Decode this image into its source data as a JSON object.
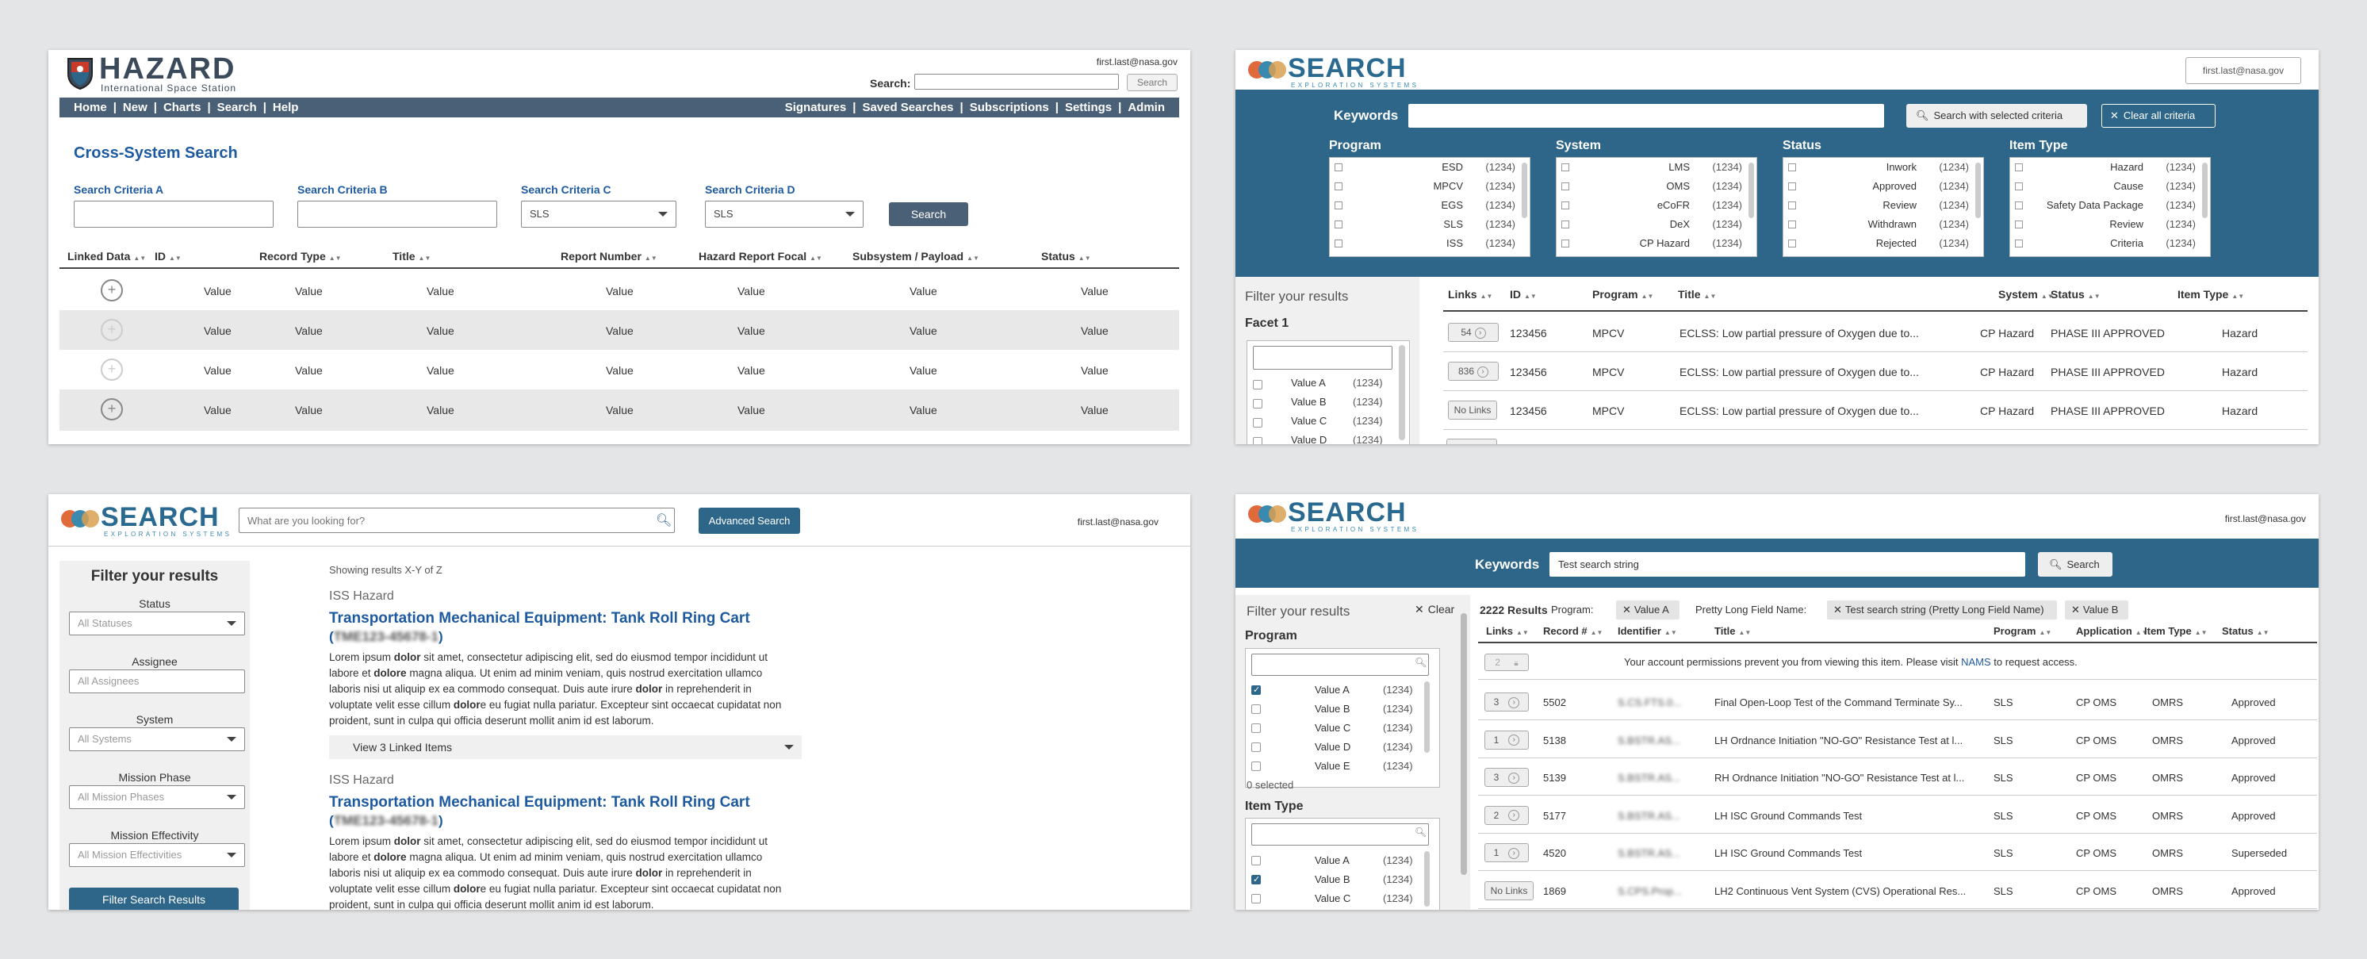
{
  "p1": {
    "logo_main": "HAZARD",
    "logo_sub": "International Space Station",
    "user": "first.last@nasa.gov",
    "search_label": "Search:",
    "search_button": "Search",
    "nav_left": [
      "Home",
      "New",
      "Charts",
      "Search",
      "Help"
    ],
    "nav_right": [
      "Signatures",
      "Saved Searches",
      "Subscriptions",
      "Settings",
      "Admin"
    ],
    "page_title": "Cross-System Search",
    "criteria": [
      {
        "label": "Search Criteria A",
        "value": ""
      },
      {
        "label": "Search Criteria B",
        "value": ""
      },
      {
        "label": "Search Criteria C",
        "value": "SLS"
      },
      {
        "label": "Search Criteria D",
        "value": "SLS"
      }
    ],
    "search_button2": "Search",
    "columns": [
      "Linked Data",
      "ID",
      "Record Type",
      "Title",
      "Report Number",
      "Hazard Report Focal",
      "Subsystem / Payload",
      "Status"
    ],
    "rows": [
      [
        "Value",
        "Value",
        "Value",
        "Value",
        "Value",
        "Value",
        "Value"
      ],
      [
        "Value",
        "Value",
        "Value",
        "Value",
        "Value",
        "Value",
        "Value"
      ],
      [
        "Value",
        "Value",
        "Value",
        "Value",
        "Value",
        "Value",
        "Value"
      ],
      [
        "Value",
        "Value",
        "Value",
        "Value",
        "Value",
        "Value",
        "Value"
      ]
    ]
  },
  "logo": {
    "word": "SEARCH",
    "sub": "EXPLORATION SYSTEMS",
    "colors": [
      "#e06a3a",
      "#3a8ab0",
      "#d8a050"
    ]
  },
  "p2": {
    "user": "first.last@nasa.gov",
    "keywords_label": "Keywords",
    "search_btn": "Search with selected criteria",
    "clear_btn": "Clear all criteria",
    "groups": [
      {
        "title": "Program",
        "items": [
          [
            "ESD",
            "(1234)"
          ],
          [
            "MPCV",
            "(1234)"
          ],
          [
            "EGS",
            "(1234)"
          ],
          [
            "SLS",
            "(1234)"
          ],
          [
            "ISS",
            "(1234)"
          ]
        ]
      },
      {
        "title": "System",
        "items": [
          [
            "LMS",
            "(1234)"
          ],
          [
            "OMS",
            "(1234)"
          ],
          [
            "eCoFR",
            "(1234)"
          ],
          [
            "DeX",
            "(1234)"
          ],
          [
            "CP Hazard",
            "(1234)"
          ]
        ]
      },
      {
        "title": "Status",
        "items": [
          [
            "Inwork",
            "(1234)"
          ],
          [
            "Approved",
            "(1234)"
          ],
          [
            "Review",
            "(1234)"
          ],
          [
            "Withdrawn",
            "(1234)"
          ],
          [
            "Rejected",
            "(1234)"
          ]
        ]
      },
      {
        "title": "Item Type",
        "items": [
          [
            "Hazard",
            "(1234)"
          ],
          [
            "Cause",
            "(1234)"
          ],
          [
            "Safety Data Package",
            "(1234)"
          ],
          [
            "Review",
            "(1234)"
          ],
          [
            "Criteria",
            "(1234)"
          ]
        ]
      }
    ],
    "filter_title": "Filter your results",
    "facet_title": "Facet 1",
    "facet_items": [
      [
        "Value A",
        "(1234)"
      ],
      [
        "Value B",
        "(1234)"
      ],
      [
        "Value C",
        "(1234)"
      ],
      [
        "Value D",
        "(1234)"
      ]
    ],
    "columns": [
      "Links",
      "ID",
      "Program",
      "Title",
      "System",
      "Status",
      "Item Type"
    ],
    "rows": [
      {
        "links": "54",
        "id": "123456",
        "program": "MPCV",
        "title": "ECLSS: Low partial pressure of Oxygen due to...",
        "system": "CP Hazard",
        "status": "PHASE III APPROVED",
        "type": "Hazard"
      },
      {
        "links": "836",
        "id": "123456",
        "program": "MPCV",
        "title": "ECLSS: Low partial pressure of Oxygen due to...",
        "system": "CP Hazard",
        "status": "PHASE III APPROVED",
        "type": "Hazard"
      },
      {
        "links": "No Links",
        "id": "123456",
        "program": "MPCV",
        "title": "ECLSS: Low partial pressure of Oxygen due to...",
        "system": "CP Hazard",
        "status": "PHASE III APPROVED",
        "type": "Hazard"
      }
    ]
  },
  "p3": {
    "search_placeholder": "What are you looking for?",
    "advanced": "Advanced Search",
    "user": "first.last@nasa.gov",
    "filter_title": "Filter your results",
    "filters": [
      {
        "label": "Status",
        "value": "All Statuses",
        "type": "select"
      },
      {
        "label": "Assignee",
        "value": "All Assignees",
        "type": "input"
      },
      {
        "label": "System",
        "value": "All Systems",
        "type": "select"
      },
      {
        "label": "Mission Phase",
        "value": "All Mission Phases",
        "type": "select"
      },
      {
        "label": "Mission Effectivity",
        "value": "All Mission Effectivities",
        "type": "select"
      }
    ],
    "filter_button": "Filter Search Results",
    "showing": "Showing results X-Y of Z",
    "results": [
      {
        "type": "ISS Hazard",
        "title": "Transportation Mechanical Equipment: Tank Roll Ring Cart",
        "code": "TME123-45678-1",
        "linked": "View 3 Linked Items"
      },
      {
        "type": "ISS Hazard",
        "title": "Transportation Mechanical Equipment: Tank Roll Ring Cart",
        "code": "TME123-45678-1"
      }
    ],
    "lorem": [
      "Lorem ipsum ",
      "dolor",
      " sit amet, consectetur adipiscing elit, sed do eiusmod tempor incididunt ut",
      "labore et ",
      "dolore",
      " magna aliqua. Ut enim ad minim veniam, quis nostrud exercitation ullamco",
      "laboris nisi ut aliquip ex ea commodo consequat. Duis aute irure ",
      "dolor",
      " in reprehenderit in",
      "voluptate velit esse cillum ",
      "dolor",
      "e eu fugiat nulla pariatur. Excepteur sint occaecat cupidatat non",
      "proident, sunt in culpa qui officia deserunt mollit anim id est laborum."
    ]
  },
  "p4": {
    "user": "first.last@nasa.gov",
    "keywords_label": "Keywords",
    "keywords_value": "Test search string",
    "search_btn": "Search",
    "filter_title": "Filter your results",
    "clear": "Clear",
    "results_count": "2222 Results",
    "program_label": "Program:",
    "chip_a": "Value A",
    "long_label": "Pretty Long Field Name:",
    "chip_long": "Test search string (Pretty Long Field Name)",
    "chip_b": "Value B",
    "program_title": "Program",
    "program_items": [
      [
        "Value A",
        "(1234)",
        true
      ],
      [
        "Value B",
        "(1234)",
        false
      ],
      [
        "Value C",
        "(1234)",
        false
      ],
      [
        "Value D",
        "(1234)",
        false
      ],
      [
        "Value E",
        "(1234)",
        false
      ]
    ],
    "selected": "0 selected",
    "itemtype_title": "Item Type",
    "itemtype_items": [
      [
        "Value A",
        "(1234)",
        false
      ],
      [
        "Value B",
        "(1234)",
        true
      ],
      [
        "Value C",
        "(1234)",
        false
      ]
    ],
    "columns": [
      "Links",
      "Record #",
      "Identifier",
      "Title",
      "Program",
      "Application",
      "Item Type",
      "Status"
    ],
    "perm_links": "2",
    "perm_msg_a": "Your account permissions prevent you from viewing this item. Please visit ",
    "perm_link": "NAMS",
    "perm_msg_b": " to request access.",
    "rows": [
      {
        "links": "3",
        "rec": "5502",
        "ident": "S.CS.FTS.0...",
        "title": "Final Open-Loop Test of the Command Terminate Sy...",
        "program": "SLS",
        "app": "CP OMS",
        "type": "OMRS",
        "status": "Approved"
      },
      {
        "links": "1",
        "rec": "5138",
        "ident": "S.BSTR.AS...",
        "title": "LH Ordnance Initiation \"NO-GO\" Resistance Test at l...",
        "program": "SLS",
        "app": "CP OMS",
        "type": "OMRS",
        "status": "Approved"
      },
      {
        "links": "3",
        "rec": "5139",
        "ident": "S.BSTR.AS...",
        "title": "RH Ordnance Initiation \"NO-GO\" Resistance Test at l...",
        "program": "SLS",
        "app": "CP OMS",
        "type": "OMRS",
        "status": "Approved"
      },
      {
        "links": "2",
        "rec": "5177",
        "ident": "S.BSTR.AS...",
        "title": "LH ISC Ground Commands Test",
        "program": "SLS",
        "app": "CP OMS",
        "type": "OMRS",
        "status": "Approved"
      },
      {
        "links": "1",
        "rec": "4520",
        "ident": "S.BSTR.AS...",
        "title": "LH ISC Ground Commands Test",
        "program": "SLS",
        "app": "CP OMS",
        "type": "OMRS",
        "status": "Superseded"
      },
      {
        "links": "No Links",
        "rec": "1869",
        "ident": "S.CPS.Prop...",
        "title": "LH2 Continuous Vent System (CVS) Operational Res...",
        "program": "SLS",
        "app": "CP OMS",
        "type": "OMRS",
        "status": "Approved"
      }
    ]
  }
}
